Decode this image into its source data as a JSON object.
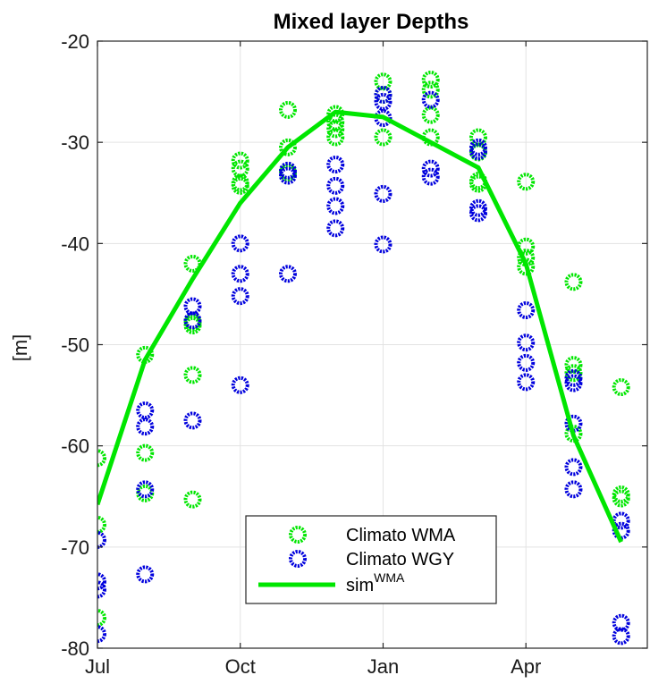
{
  "chart_data": {
    "type": "scatter",
    "title": "Mixed layer Depths",
    "xlabel": "",
    "ylabel": "[m]",
    "xlim": [
      0,
      11.55
    ],
    "ylim": [
      -80,
      -20
    ],
    "x_tick_values": [
      0,
      3,
      6,
      9
    ],
    "x_tick_labels": [
      "Jul",
      "Oct",
      "Jan",
      "Apr"
    ],
    "y_tick_values": [
      -20,
      -30,
      -40,
      -50,
      -60,
      -70,
      -80
    ],
    "y_tick_labels": [
      "-20",
      "-30",
      "-40",
      "-50",
      "-60",
      "-70",
      "-80"
    ],
    "grid": true,
    "legend_position": "bottom-center",
    "series": [
      {
        "name": "Climato WMA",
        "kind": "marker",
        "color": "#00e600",
        "points": [
          [
            0,
            -61.2
          ],
          [
            0,
            -67.8
          ],
          [
            0,
            -77
          ],
          [
            1,
            -51
          ],
          [
            1,
            -60.7
          ],
          [
            1,
            -64.7
          ],
          [
            2,
            -42
          ],
          [
            2,
            -47.8
          ],
          [
            2,
            -48.1
          ],
          [
            2,
            -53
          ],
          [
            2,
            -65.3
          ],
          [
            3,
            -31.8
          ],
          [
            3,
            -32.6
          ],
          [
            3,
            -34
          ],
          [
            3,
            -34.3
          ],
          [
            4,
            -26.8
          ],
          [
            4,
            -30.5
          ],
          [
            4,
            -33
          ],
          [
            5,
            -27.2
          ],
          [
            5,
            -28
          ],
          [
            5,
            -28.7
          ],
          [
            5,
            -29.5
          ],
          [
            6,
            -24
          ],
          [
            6,
            -25.3
          ],
          [
            6,
            -29.5
          ],
          [
            7,
            -23.8
          ],
          [
            7,
            -24.8
          ],
          [
            7,
            -27.3
          ],
          [
            7,
            -29.5
          ],
          [
            8,
            -29.5
          ],
          [
            8,
            -31
          ],
          [
            8,
            -33.8
          ],
          [
            8,
            -34.1
          ],
          [
            9,
            -33.9
          ],
          [
            9,
            -40.3
          ],
          [
            9,
            -41.4
          ],
          [
            9,
            -42.3
          ],
          [
            10,
            -43.8
          ],
          [
            10,
            -52
          ],
          [
            10,
            -52.8
          ],
          [
            10,
            -58.8
          ],
          [
            11,
            -54.2
          ],
          [
            11,
            -64.8
          ],
          [
            11,
            -65.2
          ]
        ]
      },
      {
        "name": "Climato WGY",
        "kind": "marker",
        "color": "#0000dd",
        "points": [
          [
            0,
            -69.3
          ],
          [
            0,
            -73.4
          ],
          [
            0,
            -74.2
          ],
          [
            0,
            -78.6
          ],
          [
            1,
            -56.5
          ],
          [
            1,
            -58.1
          ],
          [
            1,
            -64.3
          ],
          [
            1,
            -72.7
          ],
          [
            2,
            -46.2
          ],
          [
            2,
            -47.6
          ],
          [
            2,
            -57.5
          ],
          [
            3,
            -40
          ],
          [
            3,
            -43
          ],
          [
            3,
            -45.2
          ],
          [
            3,
            -54
          ],
          [
            4,
            -32.8
          ],
          [
            4,
            -33.3
          ],
          [
            4,
            -43
          ],
          [
            5,
            -32.2
          ],
          [
            5,
            -34.3
          ],
          [
            5,
            -36.3
          ],
          [
            5,
            -38.5
          ],
          [
            6,
            -25.3
          ],
          [
            6,
            -26
          ],
          [
            6,
            -27.6
          ],
          [
            6,
            -35.1
          ],
          [
            6,
            -40.1
          ],
          [
            7,
            -25.8
          ],
          [
            7,
            -32.6
          ],
          [
            7,
            -33.4
          ],
          [
            8,
            -30.5
          ],
          [
            8,
            -30.9
          ],
          [
            8,
            -36.5
          ],
          [
            8,
            -37
          ],
          [
            9,
            -46.6
          ],
          [
            9,
            -49.8
          ],
          [
            9,
            -51.8
          ],
          [
            9,
            -53.7
          ],
          [
            10,
            -53.3
          ],
          [
            10,
            -53.8
          ],
          [
            10,
            -57.8
          ],
          [
            10,
            -62.1
          ],
          [
            10,
            -64.3
          ],
          [
            11,
            -67.4
          ],
          [
            11,
            -68.4
          ],
          [
            11,
            -77.5
          ],
          [
            11,
            -78.8
          ]
        ]
      },
      {
        "name": "sim",
        "name_sup": "WMA",
        "kind": "line",
        "color": "#00e600",
        "points": [
          [
            0,
            -65.8
          ],
          [
            1,
            -51.5
          ],
          [
            2,
            -43.5
          ],
          [
            3,
            -36
          ],
          [
            4,
            -30.5
          ],
          [
            5,
            -27
          ],
          [
            6,
            -27.5
          ],
          [
            7,
            -30
          ],
          [
            8,
            -32.5
          ],
          [
            9,
            -42
          ],
          [
            10,
            -59
          ],
          [
            11,
            -69.5
          ]
        ]
      }
    ]
  }
}
